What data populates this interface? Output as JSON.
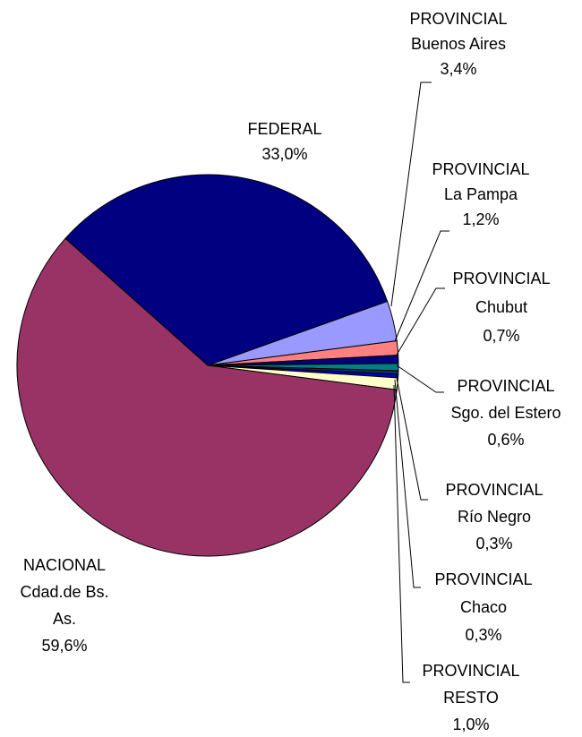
{
  "chart_data": {
    "type": "pie",
    "categories": [
      [
        "FEDERAL"
      ],
      [
        "PROVINCIAL",
        "Buenos Aires"
      ],
      [
        "PROVINCIAL",
        "La Pampa"
      ],
      [
        "PROVINCIAL",
        "Chubut"
      ],
      [
        "PROVINCIAL",
        "Sgo. del Estero"
      ],
      [
        "PROVINCIAL",
        "Río Negro"
      ],
      [
        "PROVINCIAL",
        "Chaco"
      ],
      [
        "PROVINCIAL",
        "RESTO"
      ],
      [
        "NACIONAL",
        "Cdad.de Bs.",
        "As."
      ]
    ],
    "values": [
      33.0,
      3.4,
      1.2,
      0.7,
      0.6,
      0.3,
      0.3,
      1.0,
      59.6
    ],
    "value_labels": [
      "33,0%",
      "3,4%",
      "1,2%",
      "0,7%",
      "0,6%",
      "0,3%",
      "0,3%",
      "1,0%",
      "59,6%"
    ],
    "colors": [
      "#000080",
      "#9999ff",
      "#ff8080",
      "#000080",
      "#008080",
      "#003366",
      "#0000cc",
      "#ffffcc",
      "#993366"
    ]
  }
}
